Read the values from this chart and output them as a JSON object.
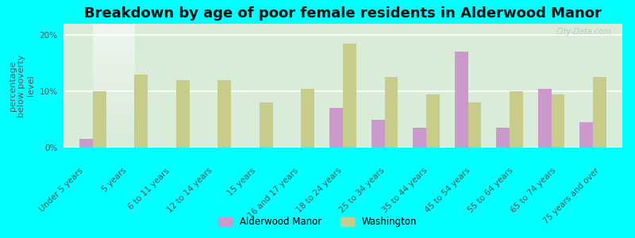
{
  "title": "Breakdown by age of poor female residents in Alderwood Manor",
  "categories": [
    "Under 5 years",
    "5 years",
    "6 to 11 years",
    "12 to 14 years",
    "15 years",
    "16 and 17 years",
    "18 to 24 years",
    "25 to 34 years",
    "35 to 44 years",
    "45 to 54 years",
    "55 to 64 years",
    "65 to 74 years",
    "75 years and over"
  ],
  "alderwood_values": [
    1.5,
    0,
    0,
    0,
    0,
    0,
    7.0,
    5.0,
    3.5,
    17.0,
    3.5,
    10.5,
    4.5
  ],
  "washington_values": [
    10.0,
    13.0,
    12.0,
    12.0,
    8.0,
    10.5,
    18.5,
    12.5,
    9.5,
    8.0,
    10.0,
    9.5,
    12.5
  ],
  "alderwood_color": "#cc99cc",
  "washington_color": "#c8cc8a",
  "ylabel": "percentage\nbelow poverty\nlevel",
  "ylim": [
    0,
    22
  ],
  "yticks": [
    0,
    10,
    20
  ],
  "ytick_labels": [
    "0%",
    "10%",
    "20%"
  ],
  "bg_top_color": "#eef5ee",
  "bg_bottom_color": "#d8ecd8",
  "outer_background": "#00ffff",
  "title_fontsize": 13,
  "axis_label_fontsize": 8,
  "tick_fontsize": 7.5,
  "legend_labels": [
    "Alderwood Manor",
    "Washington"
  ],
  "watermark": "City-Data.com"
}
